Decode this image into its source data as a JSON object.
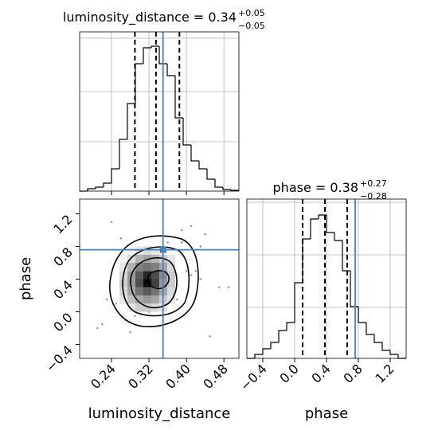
{
  "chart_data": [
    {
      "type": "histogram",
      "title": "luminosity_distance = 0.34",
      "title_upper": "+0.05",
      "title_lower": "−0.05",
      "bins": [
        0.172,
        0.189,
        0.206,
        0.223,
        0.24,
        0.257,
        0.274,
        0.291,
        0.308,
        0.325,
        0.342,
        0.359,
        0.376,
        0.393,
        0.41,
        0.427,
        0.444,
        0.461,
        0.478,
        0.495,
        0.512
      ],
      "counts": [
        0,
        3,
        5,
        10,
        28,
        65,
        110,
        160,
        180,
        182,
        160,
        145,
        92,
        58,
        38,
        28,
        15,
        5,
        2,
        1
      ],
      "xlim": [
        0.172,
        0.512
      ],
      "ylim": [
        0,
        200
      ],
      "xticks": [
        0.24,
        0.32,
        0.4,
        0.48
      ],
      "quantiles": [
        0.29,
        0.335,
        0.385
      ],
      "truth": 0.35,
      "truth_color": "#4682b4",
      "color": "#000000",
      "grid": true
    },
    {
      "type": "scatter",
      "xlabel": "luminosity_distance",
      "ylabel": "phase",
      "xlim": [
        0.172,
        0.512
      ],
      "ylim": [
        -0.57,
        1.38
      ],
      "xticks": [
        0.24,
        0.32,
        {
          "value": 0.4,
          "label": "0.40"
        },
        0.48
      ],
      "yticks": [
        {
          "value": -0.4,
          "label": "−0.4"
        },
        {
          "value": 0,
          "label": "0.0"
        },
        0.4,
        0.8,
        1.2
      ],
      "x": [
        0.25,
        0.3,
        0.22,
        0.33,
        0.28,
        0.31,
        0.26,
        0.34,
        0.29,
        0.31,
        0.43,
        0.41,
        0.37,
        0.45,
        0.39,
        0.43,
        0.36,
        0.4,
        0.24,
        0.38,
        0.27,
        0.47,
        0.32,
        0.35,
        0.42,
        0.3,
        0.21,
        0.44,
        0.33,
        0.39,
        0.49,
        0.23,
        0.37,
        0.28,
        0.36,
        0.26,
        0.41,
        0.34,
        0.29,
        0.32
      ],
      "y": [
        0.1,
        0.55,
        -0.15,
        0.7,
        0.35,
        0.2,
        0.9,
        0.6,
        -0.05,
        0.25,
        0.8,
        0.45,
        0.05,
        -0.3,
        1.0,
        0.4,
        0.65,
        0.5,
        1.1,
        0.15,
        -0.1,
        0.3,
        0.0,
        0.75,
        0.5,
        0.35,
        -0.2,
        0.95,
        0.2,
        0.85,
        0.3,
        0.15,
        0.65,
        -0.25,
        0.85,
        0.1,
        1.05,
        0.4,
        0.55,
        0.0
      ],
      "point_color": "#9a9a9a",
      "density": {
        "xedges": [
          0.257,
          0.274,
          0.291,
          0.308,
          0.325,
          0.342,
          0.359,
          0.376
        ],
        "yedges": [
          0.0,
          0.1,
          0.2,
          0.3,
          0.4,
          0.5,
          0.6,
          0.7,
          0.8
        ],
        "values": [
          [
            0,
            0.1,
            0.2,
            0.2,
            0.15,
            0.1,
            0
          ],
          [
            0.1,
            0.25,
            0.35,
            0.4,
            0.35,
            0.2,
            0.1
          ],
          [
            0.15,
            0.35,
            0.55,
            0.65,
            0.55,
            0.35,
            0.15
          ],
          [
            0.2,
            0.4,
            0.7,
            0.95,
            0.75,
            0.4,
            0.2
          ],
          [
            0.15,
            0.4,
            0.65,
            0.85,
            0.7,
            0.45,
            0.2
          ],
          [
            0.1,
            0.3,
            0.5,
            0.55,
            0.5,
            0.35,
            0.15
          ],
          [
            0.05,
            0.15,
            0.3,
            0.35,
            0.3,
            0.2,
            0.1
          ],
          [
            0,
            0.05,
            0.1,
            0.15,
            0.1,
            0.05,
            0
          ]
        ]
      },
      "truth_x": 0.35,
      "truth_y": 0.76,
      "truth_color": "#4682b4"
    },
    {
      "type": "histogram",
      "title": "phase = 0.38",
      "title_upper": "+0.27",
      "title_lower": "−0.28",
      "xlabel": "phase",
      "bins": [
        -0.6,
        -0.5,
        -0.4,
        -0.3,
        -0.2,
        -0.1,
        0.0,
        0.1,
        0.2,
        0.3,
        0.4,
        0.5,
        0.6,
        0.7,
        0.8,
        0.9,
        1.0,
        1.1,
        1.2,
        1.3,
        1.4
      ],
      "counts": [
        0,
        5,
        12,
        20,
        35,
        45,
        95,
        150,
        175,
        180,
        158,
        148,
        110,
        65,
        45,
        30,
        20,
        10,
        5,
        0
      ],
      "xlim": [
        -0.6,
        1.4
      ],
      "ylim": [
        0,
        200
      ],
      "xticks": [
        {
          "value": -0.4,
          "label": "−0.4"
        },
        {
          "value": 0,
          "label": "0.0"
        },
        0.4,
        0.8,
        1.2
      ],
      "quantiles": [
        0.1,
        0.38,
        0.66
      ],
      "truth": 0.76,
      "truth_color": "#4682b4",
      "color": "#000000",
      "grid": true
    }
  ]
}
